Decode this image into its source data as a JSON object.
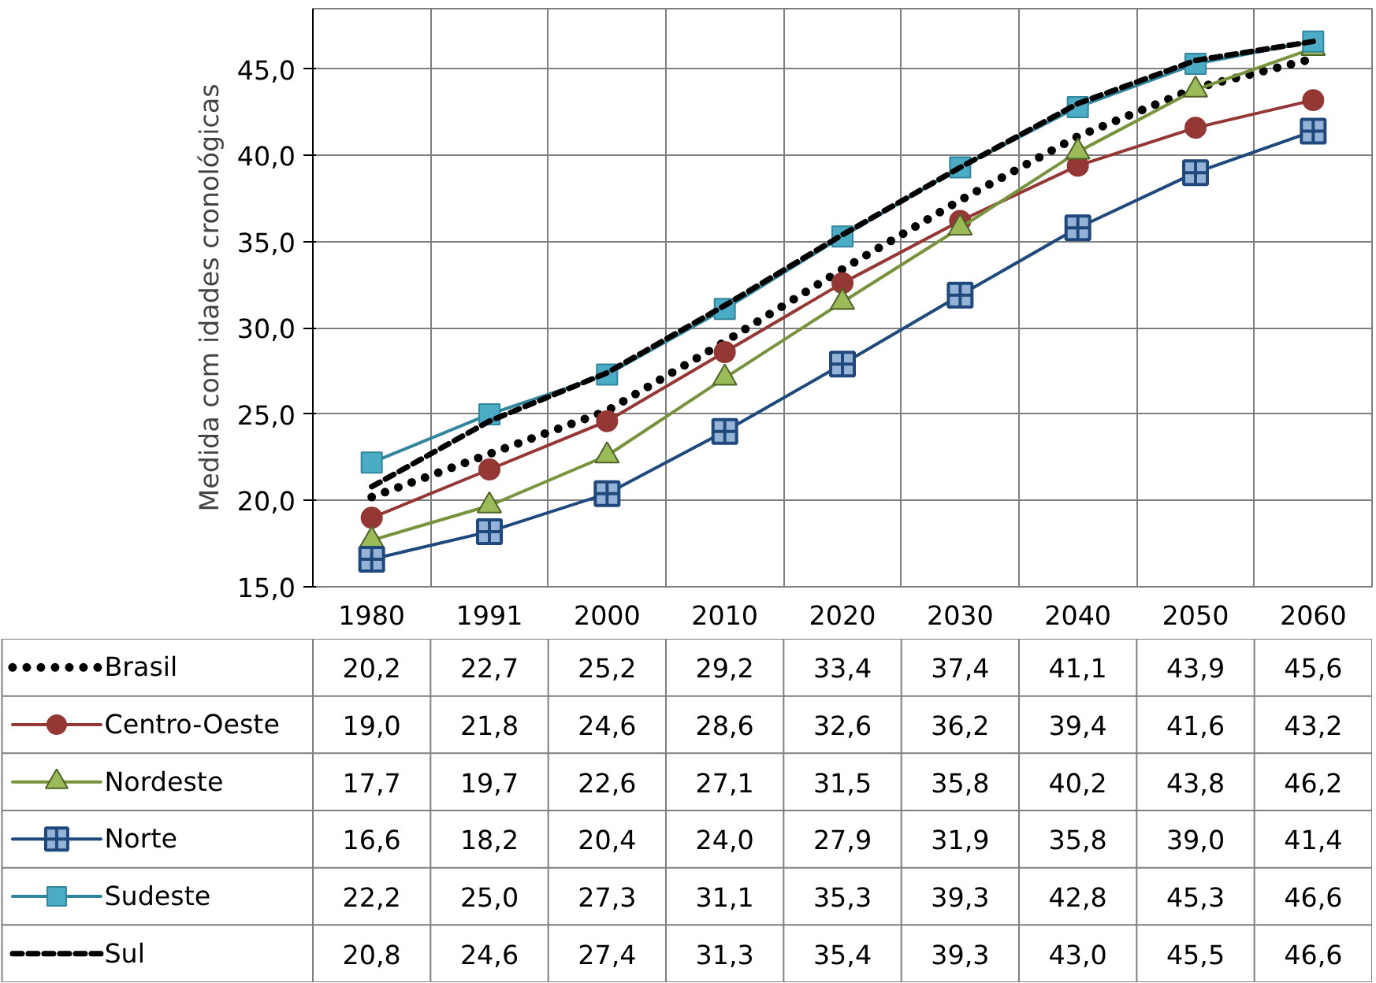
{
  "chart_data": {
    "type": "line",
    "ylabel": "Medida com idades cronológicas",
    "categories": [
      "1980",
      "1991",
      "2000",
      "2010",
      "2020",
      "2030",
      "2040",
      "2050",
      "2060"
    ],
    "ylim": [
      15,
      48.5
    ],
    "yticks": [
      {
        "value": 15,
        "label": "15,0"
      },
      {
        "value": 20,
        "label": "20,0"
      },
      {
        "value": 25,
        "label": "25,0"
      },
      {
        "value": 30,
        "label": "30,0"
      },
      {
        "value": 35,
        "label": "35,0"
      },
      {
        "value": 40,
        "label": "40,0"
      },
      {
        "value": 45,
        "label": "45,0"
      }
    ],
    "grid": true,
    "legend": "bottom",
    "series": [
      {
        "name": "Brasil",
        "color": "#000000",
        "marker": "none",
        "line_style": "dotted",
        "values": [
          20.2,
          22.7,
          25.2,
          29.2,
          33.4,
          37.4,
          41.1,
          43.9,
          45.6
        ],
        "value_labels": [
          "20,2",
          "22,7",
          "25,2",
          "29,2",
          "33,4",
          "37,4",
          "41,1",
          "43,9",
          "45,6"
        ]
      },
      {
        "name": "Centro-Oeste",
        "color": "#953735",
        "marker": "circle",
        "line_style": "solid",
        "values": [
          19.0,
          21.8,
          24.6,
          28.6,
          32.6,
          36.2,
          39.4,
          41.6,
          43.2
        ],
        "value_labels": [
          "19,0",
          "21,8",
          "24,6",
          "28,6",
          "32,6",
          "36,2",
          "39,4",
          "41,6",
          "43,2"
        ]
      },
      {
        "name": "Nordeste",
        "color": "#77933c",
        "marker": "triangle",
        "line_style": "solid",
        "values": [
          17.7,
          19.7,
          22.6,
          27.1,
          31.5,
          35.8,
          40.2,
          43.8,
          46.2
        ],
        "value_labels": [
          "17,7",
          "19,7",
          "22,6",
          "27,1",
          "31,5",
          "35,8",
          "40,2",
          "43,8",
          "46,2"
        ]
      },
      {
        "name": "Norte",
        "color": "#1f497d",
        "marker": "cross",
        "line_style": "solid",
        "values": [
          16.6,
          18.2,
          20.4,
          24.0,
          27.9,
          31.9,
          35.8,
          39.0,
          41.4
        ],
        "value_labels": [
          "16,6",
          "18,2",
          "20,4",
          "24,0",
          "27,9",
          "31,9",
          "35,8",
          "39,0",
          "41,4"
        ]
      },
      {
        "name": "Sudeste",
        "color": "#31859c",
        "marker": "square",
        "line_style": "solid",
        "values": [
          22.2,
          25.0,
          27.3,
          31.1,
          35.3,
          39.3,
          42.8,
          45.3,
          46.6
        ],
        "value_labels": [
          "22,2",
          "25,0",
          "27,3",
          "31,1",
          "35,3",
          "39,3",
          "42,8",
          "45,3",
          "46,6"
        ]
      },
      {
        "name": "Sul",
        "color": "#000000",
        "marker": "none",
        "line_style": "dashed",
        "values": [
          20.8,
          24.6,
          27.4,
          31.3,
          35.4,
          39.3,
          43.0,
          45.5,
          46.6
        ],
        "value_labels": [
          "20,8",
          "24,6",
          "27,4",
          "31,3",
          "35,4",
          "39,3",
          "43,0",
          "45,5",
          "46,6"
        ]
      }
    ]
  }
}
